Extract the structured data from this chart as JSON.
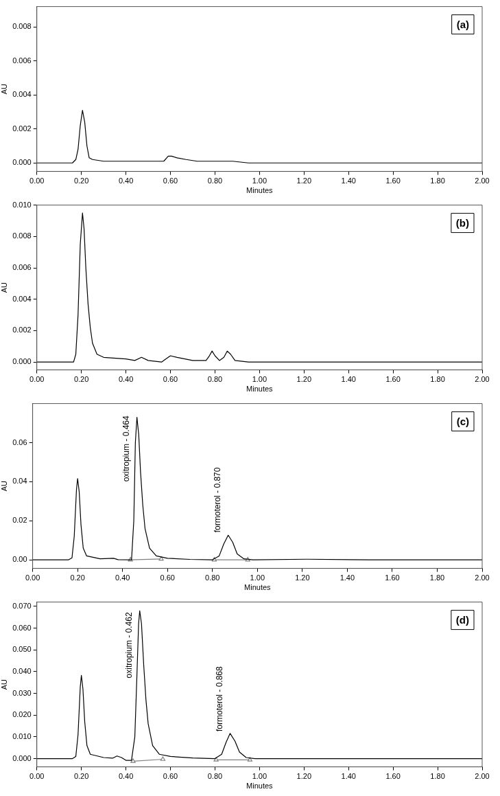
{
  "chart_data": [
    {
      "type": "line",
      "xlabel": "Minutes",
      "ylabel": "AU",
      "annotations": [
        "(a)"
      ],
      "xlim": [
        0,
        2
      ],
      "ylim": [
        -0.0005,
        0.0092
      ],
      "xticks": [
        {
          "value": 0,
          "label": "0.00"
        },
        {
          "value": 0.2,
          "label": "0.20"
        },
        {
          "value": 0.4,
          "label": "0.40"
        },
        {
          "value": 0.6,
          "label": "0.60"
        },
        {
          "value": 0.8,
          "label": "0.80"
        },
        {
          "value": 1,
          "label": "1.00"
        },
        {
          "value": 1.2,
          "label": "1.20"
        },
        {
          "value": 1.4,
          "label": "1.40"
        },
        {
          "value": 1.6,
          "label": "1.60"
        },
        {
          "value": 1.8,
          "label": "1.80"
        },
        {
          "value": 2,
          "label": "2.00"
        }
      ],
      "yticks": [
        {
          "value": 0,
          "label": "0.000"
        },
        {
          "value": 0.002,
          "label": "0.002"
        },
        {
          "value": 0.004,
          "label": "0.004"
        },
        {
          "value": 0.006,
          "label": "0.006"
        },
        {
          "value": 0.008,
          "label": "0.008"
        }
      ],
      "series": [
        {
          "color": "#000000",
          "x": [
            0,
            0.1,
            0.16,
            0.175,
            0.185,
            0.195,
            0.205,
            0.215,
            0.225,
            0.235,
            0.25,
            0.3,
            0.4,
            0.46,
            0.55,
            0.57,
            0.59,
            0.605,
            0.63,
            0.67,
            0.72,
            0.8,
            0.88,
            0.95,
            1.22,
            1.5,
            1.7,
            2
          ],
          "values": [
            0,
            0,
            0,
            0.0002,
            0.0008,
            0.0022,
            0.0031,
            0.0024,
            0.001,
            0.0003,
            0.0002,
            0.0001,
            0.0001,
            0.0001,
            0.0001,
            0.0001,
            0.0004,
            0.0004,
            0.0003,
            0.0002,
            0.0001,
            0.0001,
            0.0001,
            0,
            0,
            0,
            0,
            0
          ]
        }
      ]
    },
    {
      "type": "line",
      "xlabel": "Minutes",
      "ylabel": "AU",
      "annotations": [
        "(b)"
      ],
      "xlim": [
        0,
        2
      ],
      "ylim": [
        -0.0005,
        0.01
      ],
      "xticks": [
        {
          "value": 0,
          "label": "0.00"
        },
        {
          "value": 0.2,
          "label": "0.20"
        },
        {
          "value": 0.4,
          "label": "0.40"
        },
        {
          "value": 0.6,
          "label": "0.60"
        },
        {
          "value": 0.8,
          "label": "0.80"
        },
        {
          "value": 1,
          "label": "1.00"
        },
        {
          "value": 1.2,
          "label": "1.20"
        },
        {
          "value": 1.4,
          "label": "1.40"
        },
        {
          "value": 1.6,
          "label": "1.60"
        },
        {
          "value": 1.8,
          "label": "1.80"
        },
        {
          "value": 2,
          "label": "2.00"
        }
      ],
      "yticks": [
        {
          "value": 0,
          "label": "0.000"
        },
        {
          "value": 0.002,
          "label": "0.002"
        },
        {
          "value": 0.004,
          "label": "0.004"
        },
        {
          "value": 0.006,
          "label": "0.006"
        },
        {
          "value": 0.008,
          "label": "0.008"
        },
        {
          "value": 0.01,
          "label": "0.010"
        }
      ],
      "series": [
        {
          "color": "#000000",
          "x": [
            0,
            0.1,
            0.165,
            0.175,
            0.185,
            0.195,
            0.205,
            0.212,
            0.22,
            0.23,
            0.24,
            0.25,
            0.27,
            0.3,
            0.4,
            0.44,
            0.47,
            0.5,
            0.56,
            0.58,
            0.6,
            0.63,
            0.7,
            0.76,
            0.775,
            0.787,
            0.8,
            0.82,
            0.84,
            0.855,
            0.87,
            0.89,
            0.95,
            1.3,
            1.47,
            1.7,
            2
          ],
          "values": [
            0,
            0,
            0,
            0.0005,
            0.003,
            0.0075,
            0.0095,
            0.0085,
            0.006,
            0.0037,
            0.0022,
            0.0012,
            0.0005,
            0.0003,
            0.0002,
            0.0001,
            0.0003,
            0.0001,
            0,
            0.0002,
            0.0004,
            0.0003,
            0.0001,
            0.0001,
            0.0004,
            0.0007,
            0.0004,
            0.0001,
            0.0003,
            0.0007,
            0.0005,
            0.0001,
            0,
            0,
            0,
            0,
            0
          ]
        }
      ]
    },
    {
      "type": "line",
      "xlabel": "Minutes",
      "ylabel": "AU",
      "annotations": [
        "(c)",
        {
          "text": "oxitropium - 0.464",
          "x": 0.464,
          "y": 0.04
        },
        {
          "text": "formoterol - 0.870",
          "x": 0.87,
          "y": 0.014
        }
      ],
      "xlim": [
        0,
        2
      ],
      "ylim": [
        -0.0044,
        0.08
      ],
      "xticks": [
        {
          "value": 0,
          "label": "0.00"
        },
        {
          "value": 0.2,
          "label": "0.20"
        },
        {
          "value": 0.4,
          "label": "0.40"
        },
        {
          "value": 0.6,
          "label": "0.60"
        },
        {
          "value": 0.8,
          "label": "0.80"
        },
        {
          "value": 1,
          "label": "1.00"
        },
        {
          "value": 1.2,
          "label": "1.20"
        },
        {
          "value": 1.4,
          "label": "1.40"
        },
        {
          "value": 1.6,
          "label": "1.60"
        },
        {
          "value": 1.8,
          "label": "1.80"
        },
        {
          "value": 2,
          "label": "2.00"
        }
      ],
      "yticks": [
        {
          "value": 0,
          "label": "0.00"
        },
        {
          "value": 0.02,
          "label": "0.02"
        },
        {
          "value": 0.04,
          "label": "0.04"
        },
        {
          "value": 0.06,
          "label": "0.06"
        }
      ],
      "series": [
        {
          "color": "#000000",
          "x": [
            0,
            0.16,
            0.175,
            0.185,
            0.195,
            0.2,
            0.207,
            0.215,
            0.225,
            0.24,
            0.3,
            0.36,
            0.38,
            0.44,
            0.45,
            0.457,
            0.464,
            0.472,
            0.48,
            0.49,
            0.5,
            0.52,
            0.55,
            0.6,
            0.7,
            0.8,
            0.83,
            0.85,
            0.87,
            0.89,
            0.91,
            0.94,
            0.98,
            1.22,
            1.5,
            2
          ],
          "values": [
            0,
            0,
            0.001,
            0.012,
            0.036,
            0.0416,
            0.035,
            0.018,
            0.006,
            0.002,
            0.0005,
            0.0008,
            0.0001,
            0,
            0.02,
            0.06,
            0.073,
            0.064,
            0.045,
            0.028,
            0.016,
            0.006,
            0.002,
            0.0008,
            0.0002,
            0,
            0.002,
            0.008,
            0.0126,
            0.009,
            0.003,
            0.0005,
            0,
            0.0003,
            0,
            0
          ]
        },
        {
          "color": "#808080",
          "marker": "triangle",
          "x": [
            0.435,
            0.572,
            0.69,
            0.808,
            0.957
          ],
          "values": [
            0,
            0.0004,
            null,
            0,
            0
          ]
        }
      ]
    },
    {
      "type": "line",
      "xlabel": "Minutes",
      "ylabel": "AU",
      "annotations": [
        "(d)",
        {
          "text": "oxitropium - 0.462",
          "x": 0.462,
          "y": 0.037
        },
        {
          "text": "formoterol - 0.868",
          "x": 0.868,
          "y": 0.0125
        }
      ],
      "xlim": [
        0,
        2
      ],
      "ylim": [
        -0.0038,
        0.072
      ],
      "xticks": [
        {
          "value": 0,
          "label": "0.00"
        },
        {
          "value": 0.2,
          "label": "0.20"
        },
        {
          "value": 0.4,
          "label": "0.40"
        },
        {
          "value": 0.6,
          "label": "0.60"
        },
        {
          "value": 0.8,
          "label": "0.80"
        },
        {
          "value": 1,
          "label": "1.00"
        },
        {
          "value": 1.2,
          "label": "1.20"
        },
        {
          "value": 1.4,
          "label": "1.40"
        },
        {
          "value": 1.6,
          "label": "1.60"
        },
        {
          "value": 1.8,
          "label": "1.80"
        },
        {
          "value": 2,
          "label": "2.00"
        }
      ],
      "yticks": [
        {
          "value": 0,
          "label": "0.000"
        },
        {
          "value": 0.01,
          "label": "0.010"
        },
        {
          "value": 0.02,
          "label": "0.020"
        },
        {
          "value": 0.03,
          "label": "0.030"
        },
        {
          "value": 0.04,
          "label": "0.040"
        },
        {
          "value": 0.05,
          "label": "0.050"
        },
        {
          "value": 0.06,
          "label": "0.060"
        },
        {
          "value": 0.07,
          "label": "0.070"
        }
      ],
      "series": [
        {
          "color": "#000000",
          "x": [
            0,
            0.16,
            0.175,
            0.185,
            0.195,
            0.2,
            0.207,
            0.215,
            0.225,
            0.24,
            0.3,
            0.34,
            0.36,
            0.38,
            0.4,
            0.425,
            0.44,
            0.45,
            0.457,
            0.462,
            0.47,
            0.48,
            0.49,
            0.5,
            0.52,
            0.55,
            0.6,
            0.7,
            0.8,
            0.83,
            0.85,
            0.868,
            0.89,
            0.91,
            0.94,
            0.98,
            1.5,
            2
          ],
          "values": [
            0,
            0,
            0.001,
            0.011,
            0.033,
            0.0383,
            0.032,
            0.017,
            0.006,
            0.002,
            0.0005,
            0.0002,
            0.0012,
            0.0005,
            -0.0008,
            -0.0008,
            0.01,
            0.04,
            0.062,
            0.068,
            0.062,
            0.043,
            0.027,
            0.016,
            0.006,
            0.002,
            0.001,
            0.0003,
            0,
            0.002,
            0.0075,
            0.0116,
            0.008,
            0.003,
            0.0005,
            0,
            0,
            0
          ]
        },
        {
          "color": "#808080",
          "marker": "triangle",
          "x": [
            0.432,
            0.566,
            0.69,
            0.805,
            0.957
          ],
          "values": [
            -0.0012,
            -0.0003,
            null,
            -0.0006,
            -0.0006
          ]
        }
      ]
    }
  ]
}
